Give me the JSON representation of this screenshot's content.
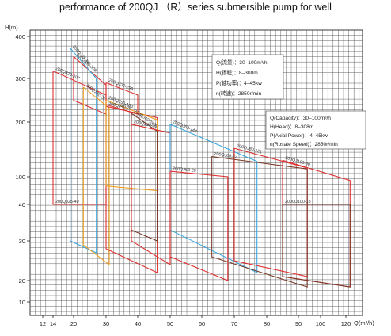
{
  "chart_data": {
    "type": "line",
    "title": "performance of 200QJ （R）series submersible pump for well",
    "xlabel": "Q(m³/h)",
    "ylabel": "H(m)",
    "x_ticks": [
      "12",
      "14",
      "20",
      "30",
      "40",
      "50",
      "60",
      "70",
      "80",
      "90",
      "100",
      "120"
    ],
    "y_ticks": [
      "400",
      "300",
      "200",
      "100",
      "40",
      "30",
      "20",
      "10"
    ],
    "legend_cn": [
      "Q(流量)：30–100m³/h",
      "H(扬程)：8–308m",
      "P(轴功率)：4–45kw",
      "n(转速)：2850r/min"
    ],
    "legend_en": [
      "Q(Capacity)：30–100m³/h",
      "H(Head)：8–308m",
      "P(Axial Power)：4–45kw",
      "n(Rosate Speed)：2850r/min"
    ],
    "series": [
      {
        "name": "200QJ20-308",
        "color": "#e03030",
        "x": [
          20,
          30,
          30,
          20,
          20
        ],
        "y": [
          352,
          285,
          218,
          250,
          352
        ]
      },
      {
        "name": "200QJ20-207",
        "color": "#e03030",
        "x": [
          14,
          30,
          30,
          14,
          14
        ],
        "y": [
          318,
          262,
          40,
          40,
          318
        ]
      },
      {
        "name": "200QJ25-40",
        "color": "#e03030",
        "x": [
          14,
          30,
          30,
          14,
          14
        ],
        "y": [
          40,
          40,
          40,
          40,
          40
        ]
      },
      {
        "name": "200QJ32-299",
        "color": "#e03030",
        "x": [
          30,
          40,
          40,
          30,
          30
        ],
        "y": [
          290,
          262,
          218,
          240,
          290
        ]
      },
      {
        "name": "200QJ25-26",
        "color": "#3aa8e0",
        "x": [
          19,
          27,
          27,
          19,
          19
        ],
        "y": [
          372,
          300,
          27,
          30,
          372
        ]
      },
      {
        "name": "200QJ32-26",
        "color": "#f0a020",
        "x": [
          23,
          31,
          31,
          23,
          23
        ],
        "y": [
          280,
          232,
          24,
          29,
          280
        ]
      },
      {
        "name": "200QJ40-26",
        "color": "#e03030",
        "x": [
          30,
          46,
          46,
          30,
          30
        ],
        "y": [
          236,
          210,
          22,
          28,
          236
        ]
      },
      {
        "name": "200QJ50-183",
        "color": "#f0a020",
        "x": [
          30,
          46,
          46,
          30,
          30
        ],
        "y": [
          250,
          205,
          70,
          80,
          250
        ]
      },
      {
        "name": "200QJ40-260",
        "color": "#7a3a2a",
        "x": [
          38,
          46,
          46,
          38,
          38
        ],
        "y": [
          220,
          183,
          30,
          33,
          220
        ]
      },
      {
        "name": "200QJ50-26",
        "color": "#e03030",
        "x": [
          38,
          50,
          50,
          38,
          38
        ],
        "y": [
          196,
          180,
          24,
          30,
          196
        ]
      },
      {
        "name": "200QJ63-144",
        "color": "#3aa8e0",
        "x": [
          50,
          77,
          77,
          50,
          50
        ],
        "y": [
          196,
          128,
          22,
          33,
          196
        ]
      },
      {
        "name": "200QJ63-20",
        "color": "#e03030",
        "x": [
          50,
          68,
          68,
          50,
          50
        ],
        "y": [
          110,
          100,
          20,
          26,
          110
        ]
      },
      {
        "name": "200QJ80-121",
        "color": "#e03030",
        "x": [
          70,
          94,
          94,
          70,
          70
        ],
        "y": [
          152,
          116,
          21,
          25,
          152
        ]
      },
      {
        "name": "200QJ80-22",
        "color": "#7a3a2a",
        "x": [
          63,
          94,
          94,
          63,
          63
        ],
        "y": [
          137,
          114,
          17,
          26,
          137
        ]
      },
      {
        "name": "200QJ100-90",
        "color": "#e03030",
        "x": [
          85,
          121,
          121,
          85,
          85
        ],
        "y": [
          130,
          92,
          17,
          21,
          130
        ]
      },
      {
        "name": "200QJ100-18",
        "color": "#7a3a2a",
        "x": [
          85,
          121,
          121,
          85,
          85
        ],
        "y": [
          40,
          40,
          17,
          21,
          40
        ]
      }
    ],
    "grid": true,
    "legend": "top-right"
  }
}
